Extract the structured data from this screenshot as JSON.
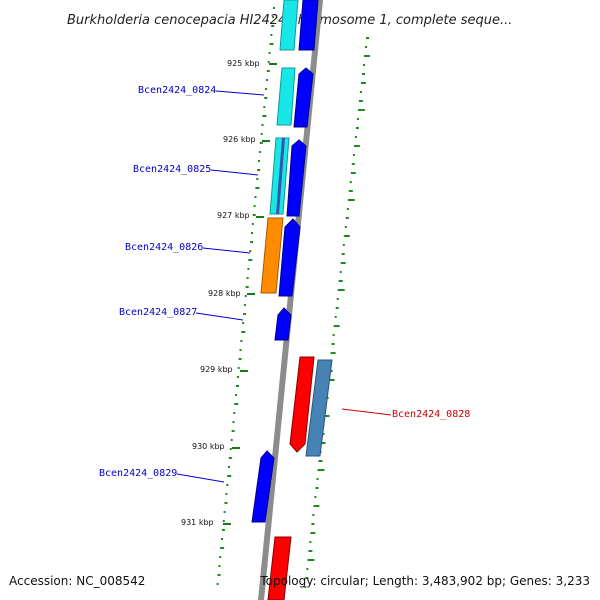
{
  "title": "Burkholderia cenocepacia HI2424 chromosome 1, complete seque...",
  "ticks": [
    {
      "label": "925 kbp"
    },
    {
      "label": "926 kbp"
    },
    {
      "label": "927 kbp"
    },
    {
      "label": "928 kbp"
    },
    {
      "label": "929 kbp"
    },
    {
      "label": "930 kbp"
    },
    {
      "label": "931 kbp"
    }
  ],
  "genes": [
    {
      "label": "Bcen2424_0824",
      "color": "#0000cc"
    },
    {
      "label": "Bcen2424_0825",
      "color": "#0000cc"
    },
    {
      "label": "Bcen2424_0826",
      "color": "#0000cc"
    },
    {
      "label": "Bcen2424_0827",
      "color": "#0000cc"
    },
    {
      "label": "Bcen2424_0828",
      "color": "#cc0000"
    },
    {
      "label": "Bcen2424_0829",
      "color": "#0000cc"
    }
  ],
  "colors": {
    "forward_cds": "#0000ff",
    "reverse_cds": "#ff0000",
    "cyan_feature": "#19e6e6",
    "orange_feature": "#ff8c00",
    "steelblue_feature": "#4682b4",
    "backbone": "#8c8c8c",
    "gc_dots": "#1e8c1e",
    "tick_marks": "#1a7a1a"
  },
  "footer": {
    "accession": "Accession: NC_008542",
    "stats": "Topology: circular; Length: 3,483,902 bp; Genes: 3,233"
  }
}
